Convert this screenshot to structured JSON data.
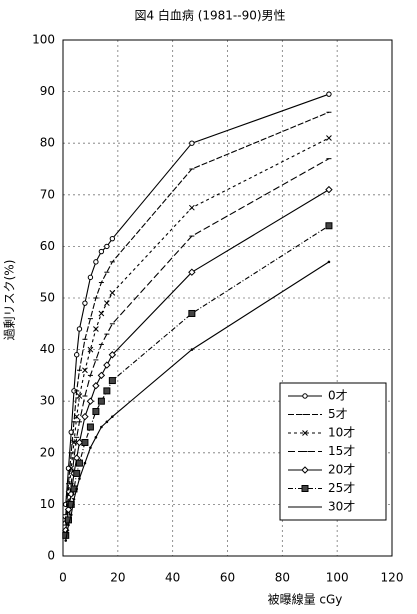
{
  "chart_data": {
    "type": "line",
    "title": "図4 白血病 (1981--90)男性",
    "x_label": "被曝線量 cGy",
    "y_label": "過剰リスク(%)",
    "x": [
      1,
      2,
      3,
      4,
      5,
      6,
      8,
      10,
      12,
      14,
      16,
      18,
      47,
      97
    ],
    "series": [
      {
        "name": "0才",
        "color": "#000000",
        "dash": "none",
        "marker": "circle",
        "values": [
          10,
          17,
          24,
          32,
          39,
          44,
          49,
          54,
          57,
          59,
          60,
          61.5,
          80,
          89.5
        ]
      },
      {
        "name": "5才",
        "color": "#000000",
        "dash": "6 2",
        "marker": "tick",
        "values": [
          8,
          14,
          20,
          26,
          32,
          36,
          42,
          46,
          50,
          53,
          55,
          57,
          75,
          86
        ]
      },
      {
        "name": "10才",
        "color": "#000000",
        "dash": "3 3",
        "marker": "x",
        "values": [
          7,
          12,
          17,
          22,
          27,
          31,
          36,
          40,
          44,
          47,
          49,
          51,
          67.5,
          81
        ]
      },
      {
        "name": "15才",
        "color": "#000000",
        "dash": "7 3",
        "marker": "tick",
        "values": [
          6,
          10,
          14,
          19,
          23,
          26,
          31,
          35,
          38,
          41,
          43,
          45,
          62,
          77
        ]
      },
      {
        "name": "20才",
        "color": "#000000",
        "dash": "none",
        "marker": "diamond",
        "values": [
          5,
          9,
          12,
          16,
          19,
          22,
          27,
          30,
          33,
          35,
          37,
          39,
          55,
          71
        ]
      },
      {
        "name": "25才",
        "color": "#000000",
        "dash": "5 2 1 2",
        "marker": "square",
        "values": [
          4,
          7,
          10,
          13,
          16,
          18,
          22,
          25,
          28,
          30,
          32,
          34,
          47,
          64
        ]
      },
      {
        "name": "30才",
        "color": "#000000",
        "dash": "none",
        "marker": "none",
        "values": [
          3,
          6,
          8,
          11,
          13,
          15,
          18,
          21,
          23,
          25,
          26,
          27,
          40,
          57
        ]
      }
    ],
    "xlim": [
      0,
      120
    ],
    "xticks": [
      0,
      20,
      40,
      60,
      80,
      100,
      120
    ],
    "ylim": [
      0,
      100
    ],
    "yticks": [
      0,
      10,
      20,
      30,
      40,
      50,
      60,
      70,
      80,
      90,
      100
    ],
    "grid": true,
    "legend": "lower right"
  }
}
